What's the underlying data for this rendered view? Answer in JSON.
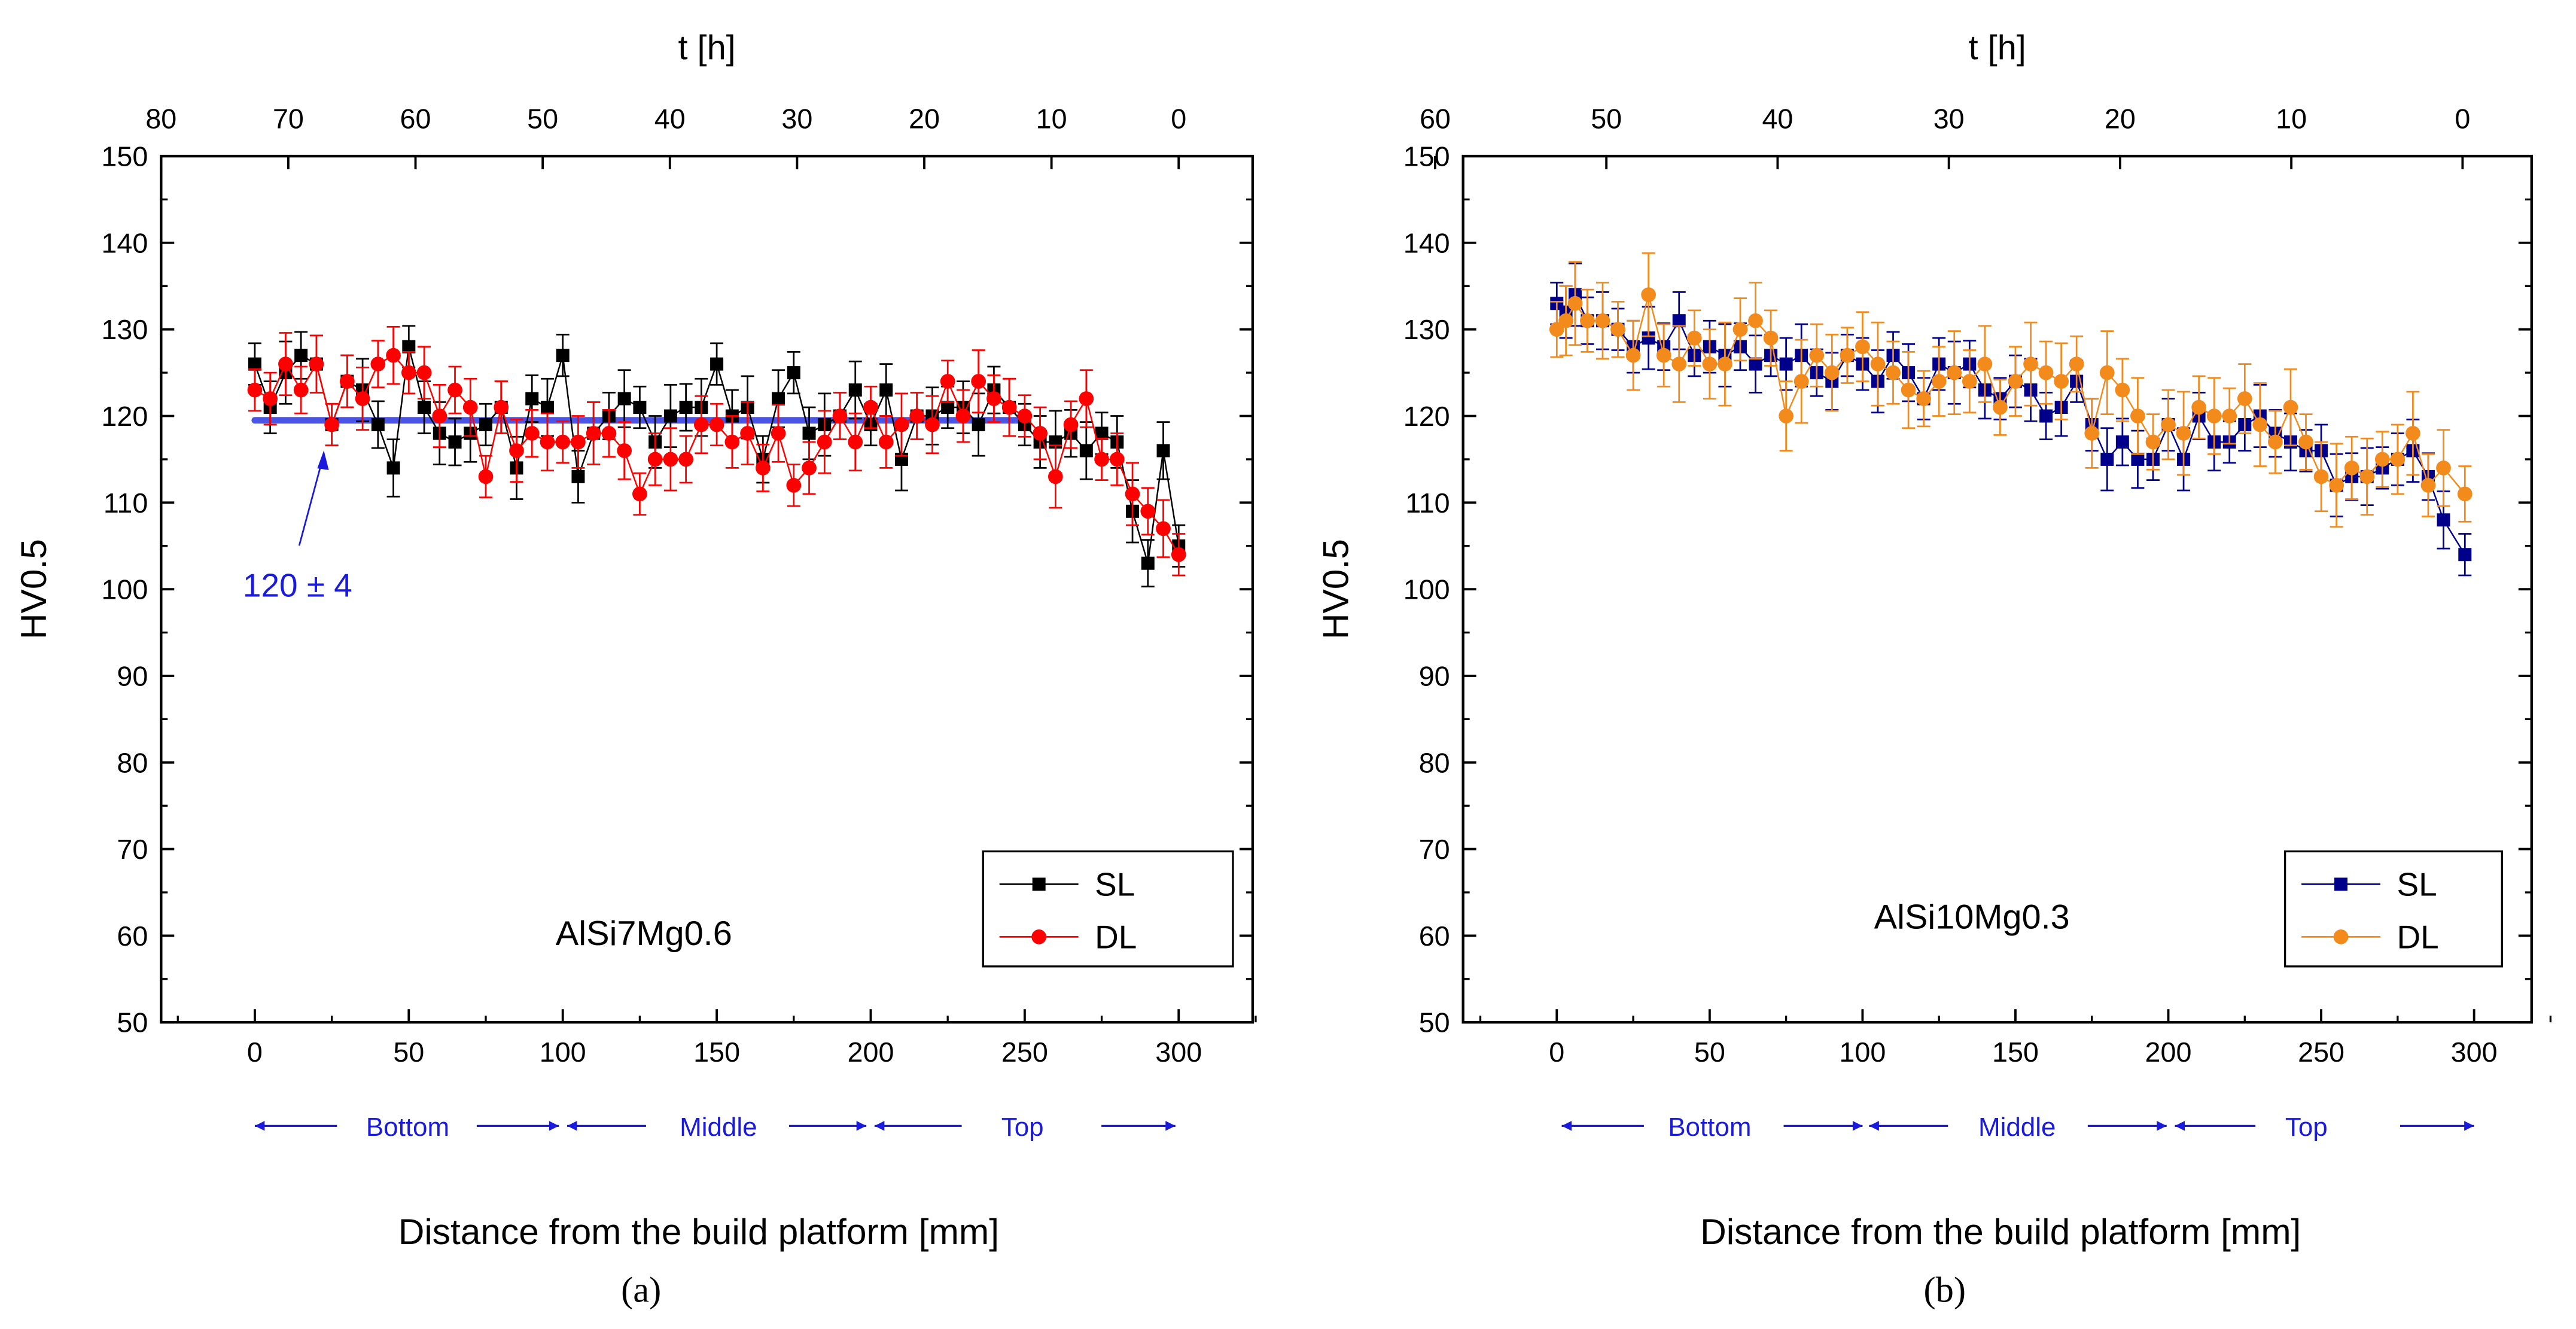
{
  "colors": {
    "sl_a": "#000000",
    "dl_a": "#ff0000",
    "sl_b": "#00008b",
    "dl_b": "#f28a1c",
    "annot": "#1a1adc",
    "mean": "#4a55e6"
  },
  "chart_data": [
    {
      "type": "scatter",
      "panel_caption": "(a)",
      "title": "",
      "annotation": "AlSi7Mg0.6",
      "xlabel": "Distance from the build platform [mm]",
      "ylabel": "HV0.5",
      "top_xlabel": "t [h]",
      "xlim": [
        -30,
        325
      ],
      "ylim": [
        50,
        150
      ],
      "xticks": [
        0,
        50,
        100,
        150,
        200,
        250,
        300
      ],
      "yticks": [
        50,
        60,
        70,
        80,
        90,
        100,
        110,
        120,
        130,
        140,
        150
      ],
      "top_xticks": [
        80,
        70,
        60,
        50,
        40,
        30,
        20,
        10,
        0
      ],
      "top_xlim": [
        80,
        0
      ],
      "zones": [
        "Bottom",
        "Middle",
        "Top"
      ],
      "legend": {
        "placement": "bottom-right",
        "entries": [
          "SL",
          "DL"
        ]
      },
      "mean_line": {
        "label": "120 ± 4",
        "value": 119.5,
        "x_range": [
          0,
          250
        ]
      },
      "series": [
        {
          "name": "SL",
          "marker": "square",
          "err": 3,
          "x": [
            0,
            5,
            10,
            15,
            20,
            25,
            30,
            35,
            40,
            45,
            50,
            55,
            60,
            65,
            70,
            75,
            80,
            85,
            90,
            95,
            100,
            105,
            110,
            115,
            120,
            125,
            130,
            135,
            140,
            145,
            150,
            155,
            160,
            165,
            170,
            175,
            180,
            185,
            190,
            195,
            200,
            205,
            210,
            215,
            220,
            225,
            230,
            235,
            240,
            245,
            250,
            255,
            260,
            265,
            270,
            275,
            280,
            285,
            290,
            295,
            300
          ],
          "y": [
            126,
            121,
            125,
            127,
            126,
            119,
            124,
            123,
            119,
            114,
            128,
            121,
            118,
            117,
            118,
            119,
            121,
            114,
            122,
            121,
            127,
            113,
            118,
            120,
            122,
            121,
            117,
            120,
            121,
            121,
            126,
            120,
            121,
            115,
            122,
            125,
            118,
            119,
            120,
            123,
            119,
            123,
            115,
            120,
            120,
            121,
            121,
            119,
            123,
            121,
            119,
            117,
            117,
            118,
            116,
            118,
            117,
            109,
            103,
            116,
            105
          ]
        },
        {
          "name": "DL",
          "marker": "circle",
          "err": 3,
          "x": [
            0,
            5,
            10,
            15,
            20,
            25,
            30,
            35,
            40,
            45,
            50,
            55,
            60,
            65,
            70,
            75,
            80,
            85,
            90,
            95,
            100,
            105,
            110,
            115,
            120,
            125,
            130,
            135,
            140,
            145,
            150,
            155,
            160,
            165,
            170,
            175,
            180,
            185,
            190,
            195,
            200,
            205,
            210,
            215,
            220,
            225,
            230,
            235,
            240,
            245,
            250,
            255,
            260,
            265,
            270,
            275,
            280,
            285,
            290,
            295,
            300
          ],
          "y": [
            123,
            122,
            126,
            123,
            126,
            119,
            124,
            122,
            126,
            127,
            125,
            125,
            120,
            123,
            121,
            113,
            121,
            116,
            118,
            117,
            117,
            117,
            118,
            118,
            116,
            111,
            115,
            115,
            115,
            119,
            119,
            117,
            118,
            114,
            118,
            112,
            114,
            117,
            120,
            117,
            121,
            117,
            119,
            120,
            119,
            124,
            120,
            124,
            122,
            121,
            120,
            118,
            113,
            119,
            122,
            115,
            115,
            111,
            109,
            107,
            104
          ]
        }
      ]
    },
    {
      "type": "scatter",
      "panel_caption": "(b)",
      "title": "",
      "annotation": "AlSi10Mg0.3",
      "xlabel": "Distance from the build platform [mm]",
      "ylabel": "HV0.5",
      "top_xlabel": "t [h]",
      "xlim": [
        -30,
        325
      ],
      "ylim": [
        50,
        150
      ],
      "xticks": [
        0,
        50,
        100,
        150,
        200,
        250,
        300
      ],
      "yticks": [
        50,
        60,
        70,
        80,
        90,
        100,
        110,
        120,
        130,
        140,
        150
      ],
      "top_xticks": [
        60,
        50,
        40,
        30,
        20,
        10,
        0
      ],
      "top_xlim": [
        60,
        0
      ],
      "zones": [
        "Bottom",
        "Middle",
        "Top"
      ],
      "legend": {
        "placement": "bottom-right",
        "entries": [
          "SL",
          "DL"
        ]
      },
      "series": [
        {
          "name": "SL",
          "marker": "square",
          "err": 3,
          "x": [
            0,
            3,
            6,
            10,
            15,
            20,
            25,
            30,
            35,
            40,
            45,
            50,
            55,
            60,
            65,
            70,
            75,
            80,
            85,
            90,
            95,
            100,
            105,
            110,
            115,
            120,
            125,
            130,
            135,
            140,
            145,
            150,
            155,
            160,
            165,
            170,
            175,
            180,
            185,
            190,
            195,
            200,
            205,
            210,
            215,
            220,
            225,
            230,
            235,
            240,
            245,
            250,
            255,
            260,
            265,
            270,
            275,
            280,
            285,
            290,
            297
          ],
          "y": [
            133,
            132,
            134,
            131,
            131,
            130,
            128,
            129,
            128,
            131,
            127,
            128,
            127,
            128,
            126,
            127,
            126,
            127,
            125,
            124,
            127,
            126,
            124,
            127,
            125,
            122,
            126,
            125,
            126,
            123,
            122,
            124,
            123,
            120,
            121,
            124,
            119,
            115,
            117,
            115,
            115,
            119,
            115,
            120,
            117,
            117,
            119,
            120,
            118,
            117,
            116,
            116,
            112,
            113,
            113,
            114,
            115,
            116,
            113,
            108,
            104
          ]
        },
        {
          "name": "DL",
          "marker": "circle",
          "err": 4,
          "x": [
            0,
            3,
            6,
            10,
            15,
            20,
            25,
            30,
            35,
            40,
            45,
            50,
            55,
            60,
            65,
            70,
            75,
            80,
            85,
            90,
            95,
            100,
            105,
            110,
            115,
            120,
            125,
            130,
            135,
            140,
            145,
            150,
            155,
            160,
            165,
            170,
            175,
            180,
            185,
            190,
            195,
            200,
            205,
            210,
            215,
            220,
            225,
            230,
            235,
            240,
            245,
            250,
            255,
            260,
            265,
            270,
            275,
            280,
            285,
            290,
            297
          ],
          "y": [
            130,
            131,
            133,
            131,
            131,
            130,
            127,
            134,
            127,
            126,
            129,
            126,
            126,
            130,
            131,
            129,
            120,
            124,
            127,
            125,
            127,
            128,
            126,
            125,
            123,
            122,
            124,
            125,
            124,
            126,
            121,
            124,
            126,
            125,
            124,
            126,
            118,
            125,
            123,
            120,
            117,
            119,
            118,
            121,
            120,
            120,
            122,
            119,
            117,
            121,
            117,
            113,
            112,
            114,
            113,
            115,
            115,
            118,
            112,
            114,
            111
          ]
        }
      ]
    }
  ]
}
